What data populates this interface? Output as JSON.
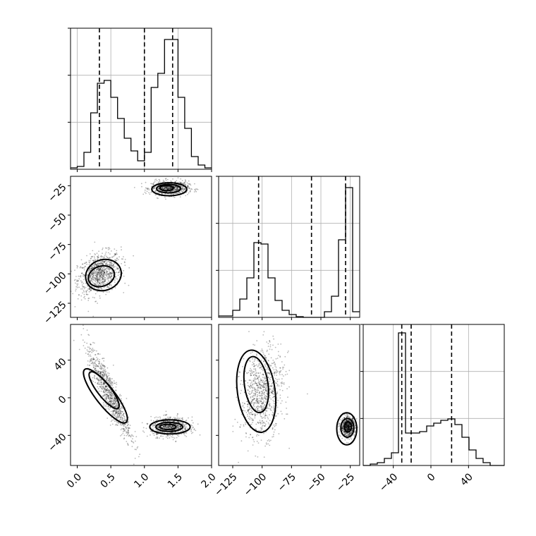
{
  "chart_data": {
    "type": "corner",
    "title": "",
    "variables": [
      {
        "range": [
          -0.1,
          2.0
        ],
        "ticks": [
          0.0,
          0.5,
          1.0,
          1.5,
          2.0
        ],
        "tick_labels": [
          "0.0",
          "0.5",
          "1.0",
          "1.5",
          "2.0"
        ]
      },
      {
        "range": [
          -137,
          -17
        ],
        "ticks": [
          -125,
          -100,
          -75,
          -50,
          -25
        ],
        "tick_labels": [
          "−125",
          "−100",
          "−75",
          "−50",
          "−25"
        ]
      },
      {
        "range": [
          -72,
          78
        ],
        "ticks": [
          -40,
          0,
          40
        ],
        "tick_labels": [
          "−40",
          "0",
          "40"
        ]
      }
    ],
    "histograms": [
      {
        "variable": 0,
        "bin_edges": [
          -0.1,
          0.0,
          0.1,
          0.2,
          0.3,
          0.4,
          0.5,
          0.6,
          0.7,
          0.8,
          0.9,
          1.0,
          1.1,
          1.2,
          1.3,
          1.4,
          1.5,
          1.6,
          1.7,
          1.8,
          1.9,
          2.0
        ],
        "counts": [
          0.01,
          0.02,
          0.12,
          0.4,
          0.61,
          0.63,
          0.51,
          0.36,
          0.22,
          0.13,
          0.06,
          0.12,
          0.58,
          0.68,
          0.92,
          0.92,
          0.51,
          0.29,
          0.09,
          0.03,
          0.01
        ],
        "ylim": [
          0,
          1.0
        ],
        "quantiles": [
          0.33,
          1.0,
          1.42
        ]
      },
      {
        "variable": 1,
        "bin_edges": [
          -137,
          -131,
          -125,
          -119,
          -113,
          -107,
          -101,
          -95,
          -89,
          -83,
          -77,
          -71,
          -65,
          -59,
          -53,
          -47,
          -41,
          -35,
          -29,
          -23,
          -17
        ],
        "counts": [
          0.01,
          0.01,
          0.05,
          0.13,
          0.28,
          0.53,
          0.52,
          0.28,
          0.12,
          0.05,
          0.02,
          0.005,
          0.0,
          0.0,
          0.0,
          0.04,
          0.15,
          0.55,
          0.92,
          0.04
        ],
        "ylim": [
          0,
          1.0
        ],
        "quantiles": [
          -103,
          -58,
          -29
        ]
      },
      {
        "variable": 2,
        "bin_edges": [
          -72,
          -64.5,
          -57,
          -49.5,
          -42,
          -34.5,
          -27,
          -19.5,
          -12,
          -4.5,
          3,
          10.5,
          18,
          25.5,
          33,
          40.5,
          48,
          55.5,
          63,
          70.5,
          78
        ],
        "counts": [
          0.0,
          0.01,
          0.02,
          0.05,
          0.09,
          0.94,
          0.23,
          0.23,
          0.24,
          0.28,
          0.3,
          0.32,
          0.33,
          0.29,
          0.2,
          0.11,
          0.05,
          0.02,
          0.0,
          0.0
        ],
        "ylim": [
          0,
          1.0
        ],
        "quantiles": [
          -31,
          -21,
          22
        ]
      }
    ],
    "pairs": [
      {
        "x_var": 0,
        "y_var": 1,
        "clusters": [
          {
            "mean": [
              0.33,
              -100
            ],
            "sd": [
              0.16,
              9
            ],
            "rho": 0.3,
            "n": 900
          },
          {
            "mean": [
              1.38,
              -27
            ],
            "sd": [
              0.14,
              3
            ],
            "rho": 0.0,
            "n": 700
          }
        ],
        "contours": [
          {
            "center": [
              0.39,
              -101
            ],
            "rx": 0.27,
            "ry": 13,
            "angle": -20
          },
          {
            "center": [
              0.36,
              -102
            ],
            "rx": 0.2,
            "ry": 8.5,
            "angle": -20
          },
          {
            "center": [
              1.37,
              -28
            ],
            "rx": 0.26,
            "ry": 5.5,
            "angle": 0
          },
          {
            "center": [
              1.36,
              -27.5
            ],
            "rx": 0.18,
            "ry": 3.6,
            "angle": 0
          },
          {
            "center": [
              1.33,
              -27
            ],
            "rx": 0.1,
            "ry": 2.2,
            "angle": 0
          }
        ]
      },
      {
        "x_var": 0,
        "y_var": 2,
        "clusters": [
          {
            "mean": [
              0.48,
              5
            ],
            "sd": [
              0.16,
              24
            ],
            "rho": -0.9,
            "n": 900
          },
          {
            "mean": [
              1.38,
              -31
            ],
            "sd": [
              0.14,
              5
            ],
            "rho": 0.0,
            "n": 700
          }
        ],
        "contours": [
          {
            "center": [
              0.42,
              2
            ],
            "rx": 0.5,
            "ry": 10,
            "angle": 52
          },
          {
            "center": [
              0.4,
              8
            ],
            "rx": 0.34,
            "ry": 7,
            "angle": 52
          },
          {
            "center": [
              1.38,
              -31
            ],
            "rx": 0.3,
            "ry": 7.5,
            "angle": 0
          },
          {
            "center": [
              1.37,
              -31
            ],
            "rx": 0.2,
            "ry": 4.8,
            "angle": 0
          },
          {
            "center": [
              1.35,
              -31
            ],
            "rx": 0.12,
            "ry": 2.8,
            "angle": 0
          }
        ]
      },
      {
        "x_var": 1,
        "y_var": 2,
        "clusters": [
          {
            "mean": [
              -100,
              5
            ],
            "sd": [
              9,
              24
            ],
            "rho": 0.2,
            "n": 900
          },
          {
            "mean": [
              -27,
              -31
            ],
            "sd": [
              3,
              5
            ],
            "rho": 0.0,
            "n": 700
          }
        ],
        "contours": [
          {
            "center": [
              -105,
              7
            ],
            "rx": 16,
            "ry": 44,
            "angle": -8
          },
          {
            "center": [
              -105,
              14
            ],
            "rx": 10,
            "ry": 30,
            "angle": -8
          },
          {
            "center": [
              -28,
              -33
            ],
            "rx": 8.5,
            "ry": 17,
            "angle": 0
          },
          {
            "center": [
              -27.5,
              -32
            ],
            "rx": 5.5,
            "ry": 10,
            "angle": 0
          },
          {
            "center": [
              -27,
              -31
            ],
            "rx": 3,
            "ry": 5.5,
            "angle": 0
          }
        ]
      }
    ]
  }
}
